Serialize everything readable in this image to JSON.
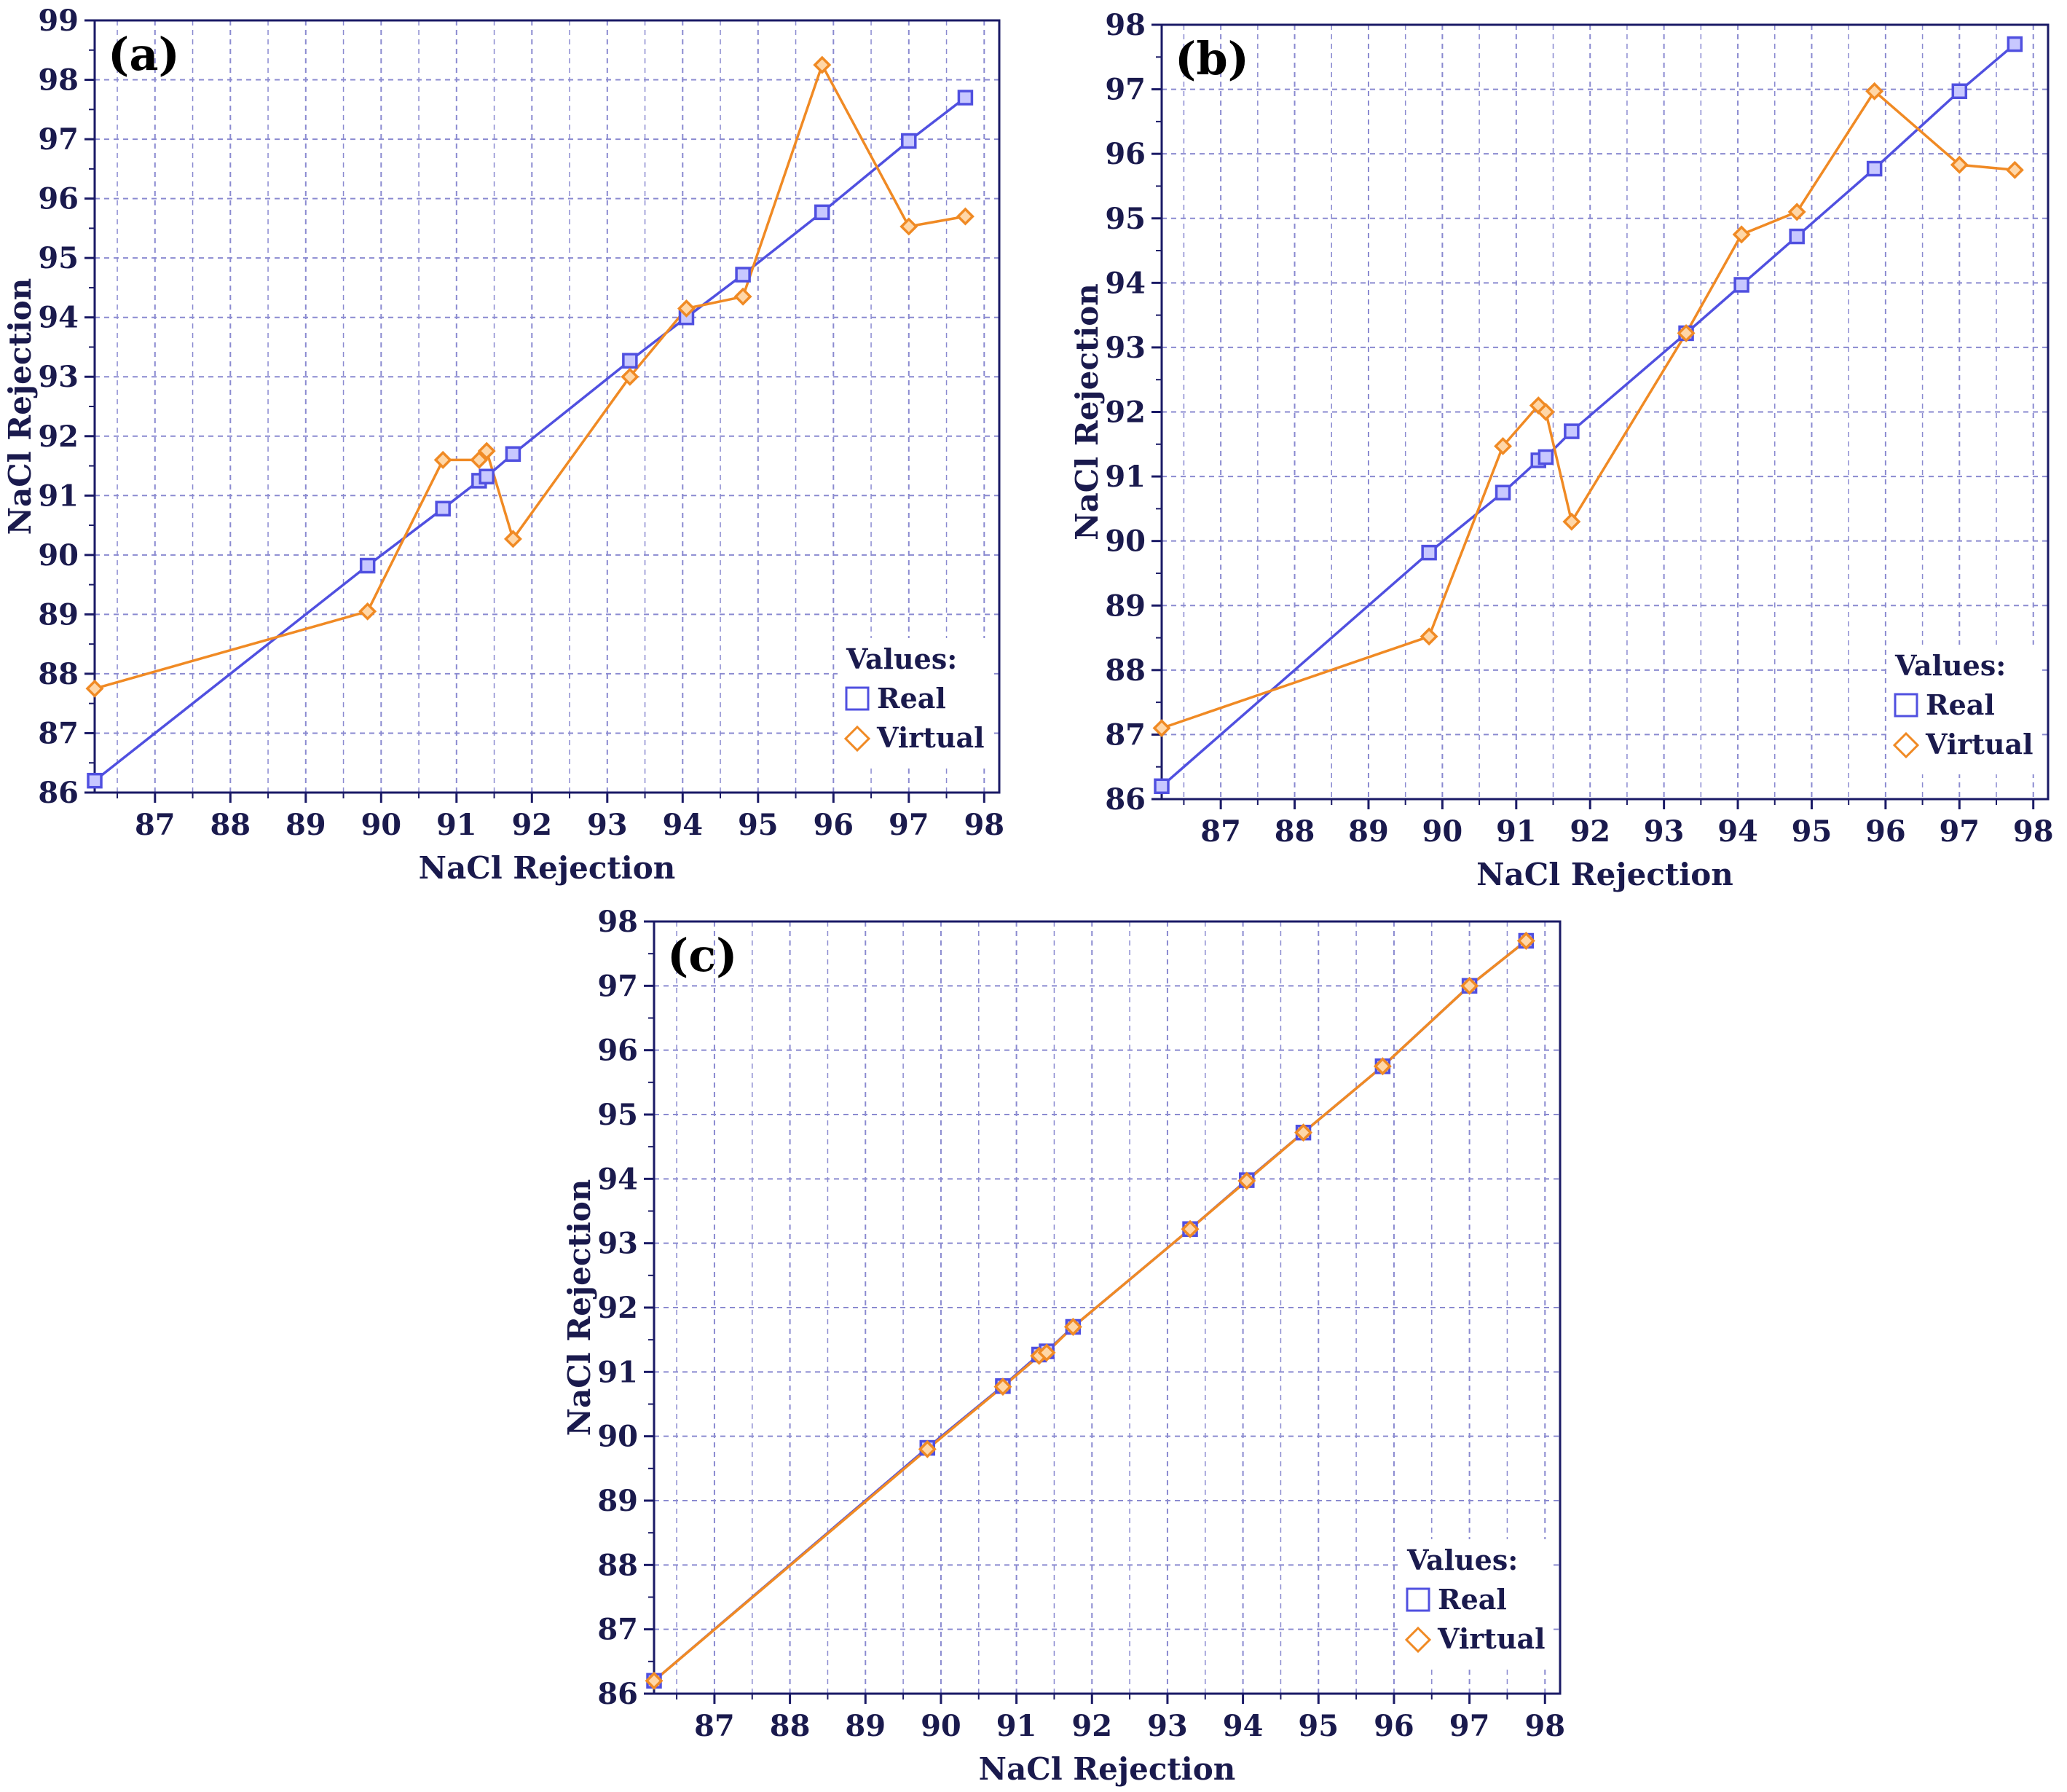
{
  "colors": {
    "real": "#5050e0",
    "virtual": "#f08a24",
    "axis": "#1a1a66",
    "grid": "#8a8ad0",
    "text": "#1a1a4d"
  },
  "chart_data": [
    {
      "type": "line",
      "panel_label": "(a)",
      "xlabel": "NaCl Rejection",
      "ylabel": "NaCl Rejection",
      "xlim": [
        86.2,
        98.2
      ],
      "ylim": [
        86,
        99
      ],
      "xticks": [
        "87",
        "88",
        "89",
        "90",
        "91",
        "92",
        "93",
        "94",
        "95",
        "96",
        "97",
        "98"
      ],
      "yticks": [
        "86",
        "87",
        "88",
        "89",
        "90",
        "91",
        "92",
        "93",
        "94",
        "95",
        "96",
        "97",
        "98",
        "99"
      ],
      "legend": {
        "title": "Values:",
        "entries": [
          "Real",
          "Virtual"
        ],
        "placement": "bottom-right"
      },
      "x": [
        86.2,
        89.82,
        90.82,
        91.3,
        91.4,
        91.75,
        93.3,
        94.05,
        94.8,
        95.85,
        97.0,
        97.75
      ],
      "series": [
        {
          "name": "Real",
          "marker": "square",
          "values": [
            86.2,
            89.82,
            90.78,
            91.25,
            91.32,
            91.7,
            93.27,
            94.0,
            94.72,
            95.77,
            96.97,
            97.7
          ]
        },
        {
          "name": "Virtual",
          "marker": "diamond",
          "values": [
            87.75,
            89.05,
            91.6,
            91.6,
            91.75,
            90.27,
            93.0,
            94.15,
            94.35,
            98.25,
            95.53,
            95.7
          ]
        }
      ]
    },
    {
      "type": "line",
      "panel_label": "(b)",
      "xlabel": "NaCl Rejection",
      "ylabel": "NaCl Rejection",
      "xlim": [
        86.2,
        98.2
      ],
      "ylim": [
        86,
        98
      ],
      "xticks": [
        "87",
        "88",
        "89",
        "90",
        "91",
        "92",
        "93",
        "94",
        "95",
        "96",
        "97",
        "98"
      ],
      "yticks": [
        "86",
        "87",
        "88",
        "89",
        "90",
        "91",
        "92",
        "93",
        "94",
        "95",
        "96",
        "97",
        "98"
      ],
      "legend": {
        "title": "Values:",
        "entries": [
          "Real",
          "Virtual"
        ],
        "placement": "bottom-right"
      },
      "x": [
        86.2,
        89.82,
        90.82,
        91.3,
        91.4,
        91.75,
        93.3,
        94.05,
        94.8,
        95.85,
        97.0,
        97.75
      ],
      "series": [
        {
          "name": "Real",
          "marker": "square",
          "values": [
            86.2,
            89.82,
            90.75,
            91.25,
            91.3,
            91.7,
            93.22,
            93.97,
            94.72,
            95.77,
            96.97,
            97.7
          ]
        },
        {
          "name": "Virtual",
          "marker": "diamond",
          "values": [
            87.1,
            88.52,
            91.47,
            92.1,
            92.0,
            90.3,
            93.22,
            94.75,
            95.1,
            96.97,
            95.83,
            95.75
          ]
        }
      ]
    },
    {
      "type": "line",
      "panel_label": "(c)",
      "xlabel": "NaCl Rejection",
      "ylabel": "NaCl Rejection",
      "xlim": [
        86.2,
        98.2
      ],
      "ylim": [
        86,
        98
      ],
      "xticks": [
        "87",
        "88",
        "89",
        "90",
        "91",
        "92",
        "93",
        "94",
        "95",
        "96",
        "97",
        "98"
      ],
      "yticks": [
        "86",
        "87",
        "88",
        "89",
        "90",
        "91",
        "92",
        "93",
        "94",
        "95",
        "96",
        "97",
        "98"
      ],
      "legend": {
        "title": "Values:",
        "entries": [
          "Real",
          "Virtual"
        ],
        "placement": "bottom-right"
      },
      "x": [
        86.2,
        89.82,
        90.82,
        91.3,
        91.4,
        91.75,
        93.3,
        94.05,
        94.8,
        95.85,
        97.0,
        97.75
      ],
      "series": [
        {
          "name": "Real",
          "marker": "square",
          "values": [
            86.2,
            89.82,
            90.78,
            91.27,
            91.32,
            91.7,
            93.22,
            93.98,
            94.72,
            95.75,
            97.0,
            97.7
          ]
        },
        {
          "name": "Virtual",
          "marker": "diamond",
          "values": [
            86.2,
            89.8,
            90.77,
            91.25,
            91.3,
            91.7,
            93.22,
            93.97,
            94.72,
            95.75,
            97.0,
            97.7
          ]
        }
      ]
    }
  ]
}
